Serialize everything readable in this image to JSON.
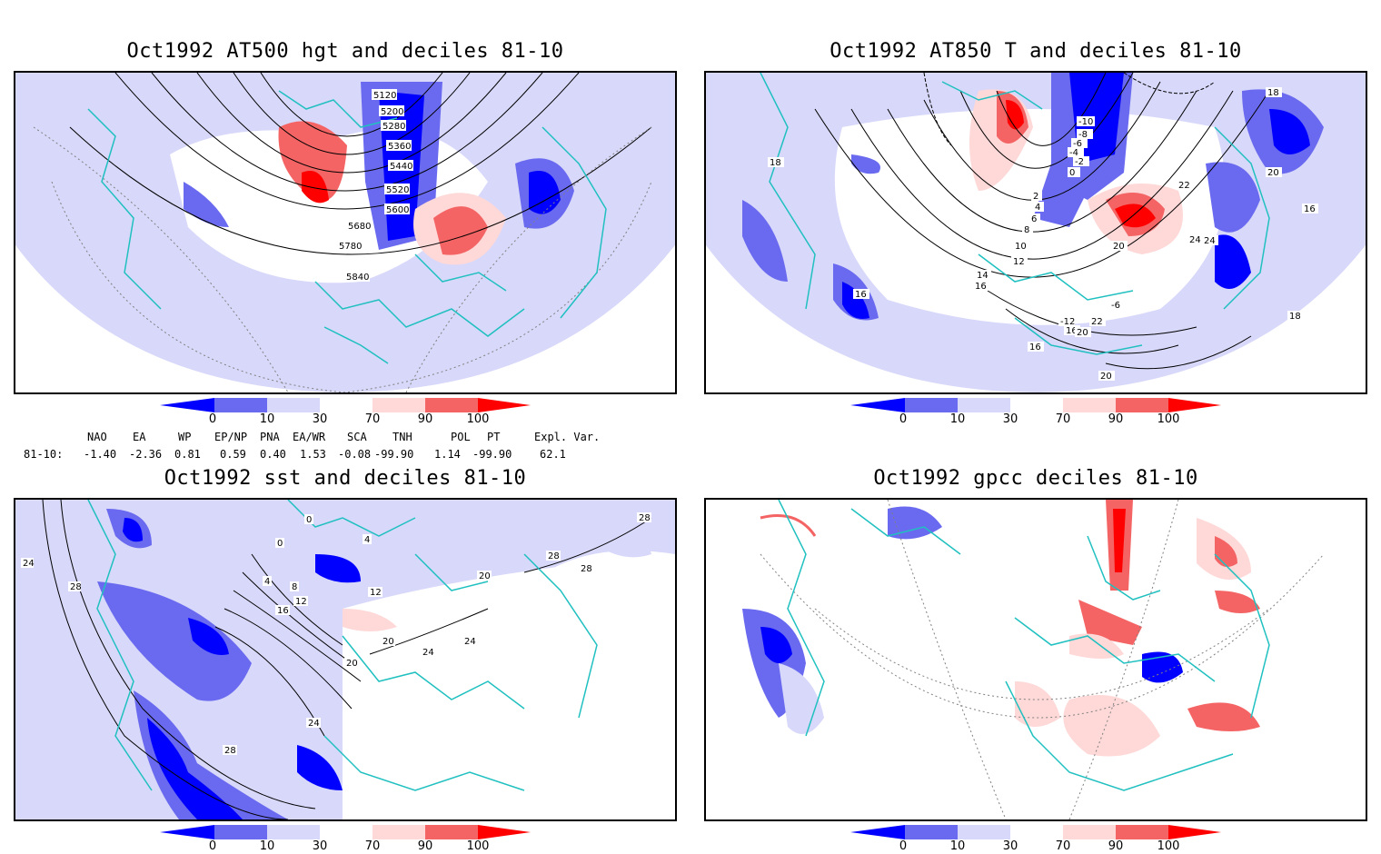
{
  "panels": {
    "p1": {
      "title": "Oct1992 AT500 hgt and deciles 81-10",
      "labels": [
        "5120",
        "5200",
        "5280",
        "5360",
        "5440",
        "5520",
        "5600",
        "5680",
        "5780",
        "5840"
      ]
    },
    "p2": {
      "title": "Oct1992 AT850 T and deciles 81-10",
      "labels": [
        "-10",
        "-8",
        "-6",
        "-4",
        "-2",
        "0",
        "2",
        "4",
        "6",
        "8",
        "10",
        "12",
        "14",
        "16",
        "18",
        "20",
        "22",
        "24",
        "-6",
        "-12",
        "16",
        "16",
        "20",
        "16",
        "18",
        "20",
        "24",
        "22",
        "20",
        "18",
        "16"
      ]
    },
    "p3": {
      "title": "Oct1992 sst and deciles 81-10",
      "labels": [
        "24",
        "28",
        "0",
        "0",
        "4",
        "4",
        "8",
        "12",
        "16",
        "20",
        "20",
        "24",
        "24",
        "28",
        "28",
        "28",
        "20",
        "12",
        "24",
        "28"
      ]
    },
    "p4": {
      "title": "Oct1992 gpcc deciles 81-10",
      "labels": []
    }
  },
  "colorbar": {
    "ticks": [
      "0",
      "10",
      "30",
      "70",
      "90",
      "100"
    ],
    "colors": [
      "#0000ff",
      "#6a6af0",
      "#d8d8fa",
      "#ffffff",
      "#ffd8d8",
      "#f46464",
      "#ff0000"
    ]
  },
  "indices": {
    "headers": [
      "NAO",
      "EA",
      "WP",
      "EP/NP",
      "PNA",
      "EA/WR",
      "SCA",
      "TNH",
      "POL",
      "PT",
      "Expl. Var."
    ],
    "row_label": "81-10:",
    "values": [
      "-1.40",
      "-2.36",
      "0.81",
      "0.59",
      "0.40",
      "1.53",
      "-0.08",
      "-99.90",
      "1.14",
      "-99.90",
      "62.1"
    ]
  },
  "legend_colors": {
    "coast": "#20c0c0",
    "contour": "#000000",
    "grid": "#808080"
  }
}
